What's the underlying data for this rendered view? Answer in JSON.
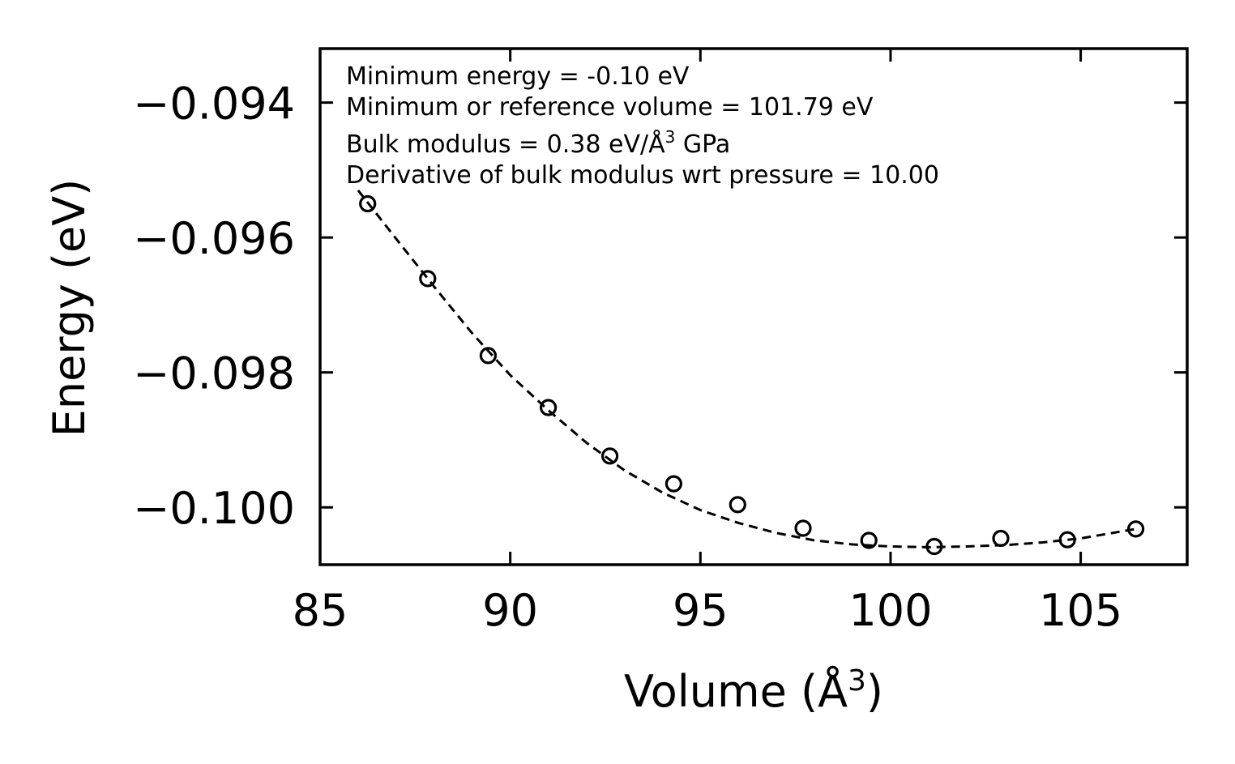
{
  "chart_data": {
    "type": "scatter",
    "xlabel": "Volume (Å",
    "xlabel_sup": "3",
    "xlabel_close": ")",
    "ylabel": "Energy (eV)",
    "xlim": [
      85,
      107.8
    ],
    "ylim": [
      -0.10085,
      -0.0932
    ],
    "x_ticks": [
      85,
      90,
      95,
      100,
      105
    ],
    "x_tick_labels": [
      "85",
      "90",
      "95",
      "100",
      "105"
    ],
    "y_ticks": [
      -0.094,
      -0.096,
      -0.098,
      -0.1
    ],
    "y_tick_labels": [
      "−0.094",
      "−0.096",
      "−0.098",
      "−0.100"
    ],
    "grid": false,
    "annotations": [
      {
        "text": "Minimum energy = -0.10 eV"
      },
      {
        "text": "Minimum or reference volume = 101.79 eV"
      },
      {
        "text": "Bulk modulus = 0.38 eV/Å",
        "sup": "3",
        "tail": " GPa"
      },
      {
        "text": "Derivative of bulk modulus wrt pressure = 10.00"
      }
    ],
    "series": [
      {
        "name": "data",
        "marker": "open-circle",
        "x": [
          86.25,
          87.83,
          89.42,
          91.0,
          92.62,
          94.3,
          95.98,
          97.7,
          99.43,
          101.15,
          102.9,
          104.65,
          106.45
        ],
        "y": [
          -0.0955,
          -0.09661,
          -0.09775,
          -0.09852,
          -0.09924,
          -0.09965,
          -0.09996,
          -0.10031,
          -0.10049,
          -0.10058,
          -0.10046,
          -0.10048,
          -0.10032
        ]
      },
      {
        "name": "fit",
        "style": "dashed",
        "x": [
          86.0,
          87.0,
          88.0,
          89.0,
          90.0,
          91.0,
          92.0,
          93.0,
          94.0,
          95.0,
          96.0,
          97.0,
          98.0,
          99.0,
          100.0,
          101.0,
          102.0,
          103.0,
          104.0,
          105.0,
          106.45
        ],
        "y": [
          -0.0953,
          -0.09602,
          -0.09673,
          -0.09742,
          -0.09804,
          -0.09856,
          -0.09904,
          -0.09945,
          -0.09978,
          -0.10004,
          -0.10023,
          -0.10038,
          -0.10049,
          -0.10055,
          -0.10058,
          -0.10059,
          -0.10058,
          -0.10056,
          -0.10052,
          -0.10046,
          -0.10032
        ]
      }
    ]
  }
}
